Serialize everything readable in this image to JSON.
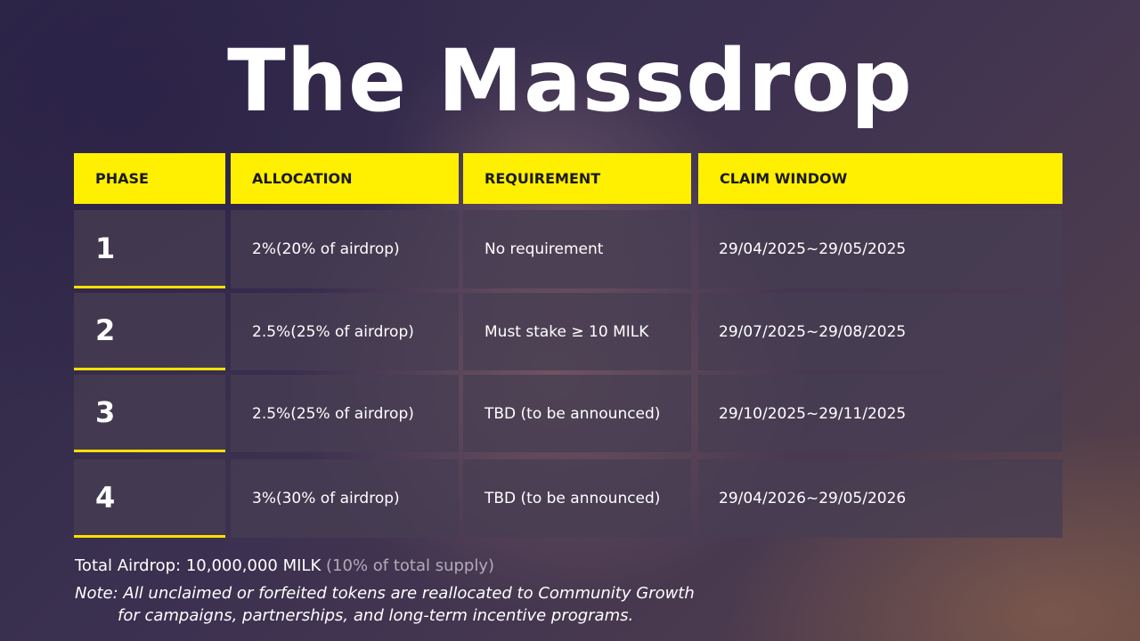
{
  "title": "The Massdrop",
  "table": {
    "headers": [
      "PHASE",
      "ALLOCATION",
      "REQUIREMENT",
      "CLAIM WINDOW"
    ],
    "rows": [
      {
        "phase": "1",
        "allocation": "2%(20% of airdrop)",
        "requirement": "No requirement",
        "claim_window": "29/04/2025~29/05/2025"
      },
      {
        "phase": "2",
        "allocation": "2.5%(25% of airdrop)",
        "requirement": "Must stake ≥ 10 MILK",
        "claim_window": "29/07/2025~29/08/2025"
      },
      {
        "phase": "3",
        "allocation": "2.5%(25% of airdrop)",
        "requirement": "TBD (to be announced)",
        "claim_window": "29/10/2025~29/11/2025"
      },
      {
        "phase": "4",
        "allocation": "3%(30% of airdrop)",
        "requirement": "TBD (to be announced)",
        "claim_window": "29/04/2026~29/05/2026"
      }
    ]
  },
  "footer": {
    "total_label": "Total Airdrop: 10,000,000 MILK",
    "total_note": "(10% of total supply)",
    "note_line1": "Note: All unclaimed or forfeited tokens are reallocated to Community Growth",
    "note_line2": "for campaigns, partnerships, and long-term incentive programs."
  },
  "colors": {
    "header_bg": "#ffef00",
    "accent_underline": "#ffe000",
    "cell_bg": "#463e52",
    "text": "#ffffff",
    "muted_text": "#b3aab8"
  }
}
